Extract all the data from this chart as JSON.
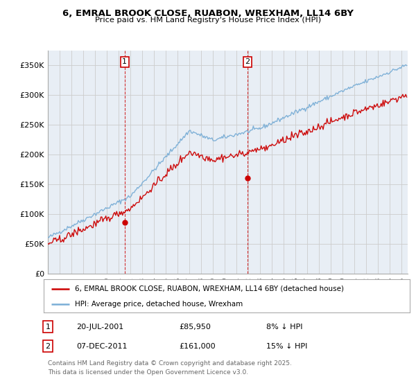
{
  "title": "6, EMRAL BROOK CLOSE, RUABON, WREXHAM, LL14 6BY",
  "subtitle": "Price paid vs. HM Land Registry's House Price Index (HPI)",
  "ylabel_ticks": [
    "£0",
    "£50K",
    "£100K",
    "£150K",
    "£200K",
    "£250K",
    "£300K",
    "£350K"
  ],
  "ytick_values": [
    0,
    50000,
    100000,
    150000,
    200000,
    250000,
    300000,
    350000
  ],
  "ylim": [
    0,
    375000
  ],
  "legend_line1": "6, EMRAL BROOK CLOSE, RUABON, WREXHAM, LL14 6BY (detached house)",
  "legend_line2": "HPI: Average price, detached house, Wrexham",
  "annotation1_label": "1",
  "annotation1_date": "20-JUL-2001",
  "annotation1_price": "£85,950",
  "annotation1_pct": "8% ↓ HPI",
  "annotation2_label": "2",
  "annotation2_date": "07-DEC-2011",
  "annotation2_price": "£161,000",
  "annotation2_pct": "15% ↓ HPI",
  "footnote_line1": "Contains HM Land Registry data © Crown copyright and database right 2025.",
  "footnote_line2": "This data is licensed under the Open Government Licence v3.0.",
  "house_color": "#cc0000",
  "hpi_color": "#7aaed6",
  "vline_color": "#cc0000",
  "grid_color": "#cccccc",
  "background_color": "#ffffff",
  "plot_bg_color": "#e8eef5",
  "sale1_year": 2001.55,
  "sale1_price": 85950,
  "sale2_year": 2011.92,
  "sale2_price": 161000,
  "xlim_min": 1995,
  "xlim_max": 2025.5
}
